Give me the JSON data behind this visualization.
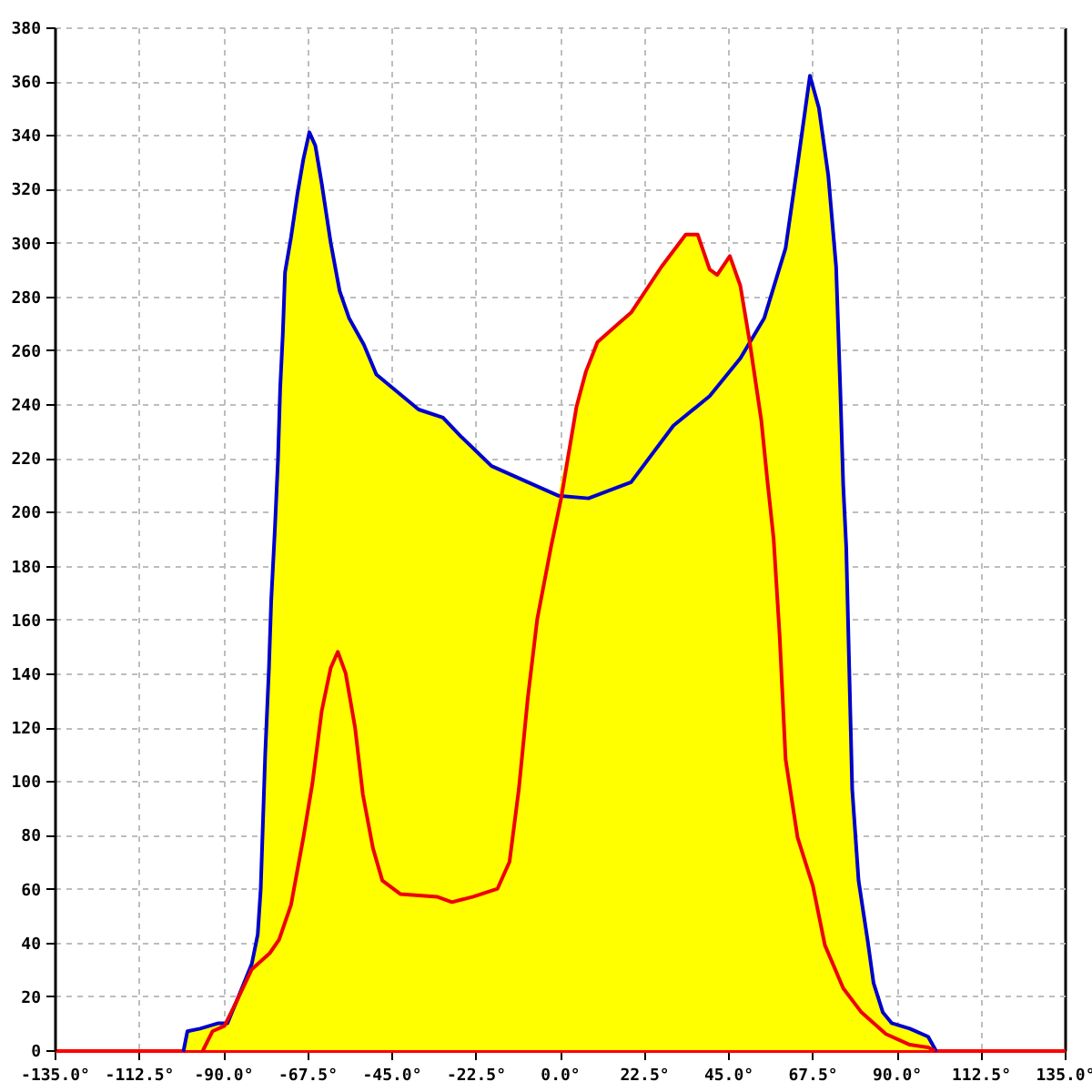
{
  "chart_data": {
    "type": "line",
    "grid": true,
    "xlim": [
      -135,
      135
    ],
    "xticks": [
      {
        "value": -135,
        "label": "-135.0°"
      },
      {
        "value": -112.5,
        "label": "-112.5°"
      },
      {
        "value": -90,
        "label": "-90.0°"
      },
      {
        "value": -67.5,
        "label": "-67.5°"
      },
      {
        "value": -45,
        "label": "-45.0°"
      },
      {
        "value": -22.5,
        "label": "-22.5°"
      },
      {
        "value": 0,
        "label": "0.0°"
      },
      {
        "value": 22.5,
        "label": "22.5°"
      },
      {
        "value": 45,
        "label": "45.0°"
      },
      {
        "value": 67.5,
        "label": "67.5°"
      },
      {
        "value": 90,
        "label": "90.0°"
      },
      {
        "value": 112.5,
        "label": "112.5°"
      },
      {
        "value": 135,
        "label": "135.0°"
      }
    ],
    "ylim": [
      0,
      380
    ],
    "yticks": [
      0,
      20,
      40,
      60,
      80,
      100,
      120,
      140,
      160,
      180,
      200,
      220,
      240,
      260,
      280,
      300,
      320,
      340,
      360,
      380
    ],
    "series": [
      {
        "type": "area",
        "color": "#ffff00",
        "x": [
          -135,
          -100.5,
          -99.5,
          -96.1,
          -91.2,
          -88.8,
          -86.4,
          -82.3,
          -80.7,
          -79.9,
          -78.7,
          -77.7,
          -77.1,
          -76.1,
          -75.3,
          -74.7,
          -74.0,
          -73.4,
          -71.8,
          -70.1,
          -68.5,
          -66.9,
          -65.3,
          -63.6,
          -61.2,
          -58.8,
          -56.3,
          -52.3,
          -49.0,
          -37.7,
          -31.2,
          -26.4,
          -18.2,
          -8.5,
          -0.4,
          4.5,
          7.0,
          10.1,
          15.8,
          19.1,
          27.2,
          33.7,
          36.9,
          40.1,
          42.1,
          45.5,
          48.3,
          50.8,
          54.7,
          60.4,
          63.6,
          66.9,
          69.3,
          71.8,
          73.9,
          75.0,
          75.8,
          76.6,
          77.4,
          78.2,
          79.9,
          82.3,
          83.9,
          86.4,
          88.8,
          93.6,
          98.5,
          100.1,
          100.5,
          135
        ],
        "values": [
          0,
          0,
          7,
          8,
          10,
          10,
          18,
          32,
          43,
          60,
          110,
          142,
          167,
          194,
          219,
          246,
          266,
          289,
          302,
          318,
          331,
          341,
          336,
          322,
          300,
          282,
          272,
          262,
          251,
          238,
          235,
          228,
          217,
          211,
          206,
          239,
          252,
          263,
          270,
          274,
          291,
          303,
          303,
          290,
          288,
          295,
          284,
          263,
          272,
          298,
          329,
          362,
          350,
          325,
          291,
          246,
          210,
          187,
          142,
          97,
          63,
          41,
          25,
          14,
          10,
          8,
          5,
          1,
          0,
          0
        ]
      },
      {
        "color": "#0000cc",
        "x": [
          -100.5,
          -99.5,
          -96.1,
          -91.2,
          -88.8,
          -86.4,
          -82.3,
          -80.7,
          -79.9,
          -78.7,
          -77.7,
          -77.1,
          -76.1,
          -75.3,
          -74.7,
          -74.0,
          -73.4,
          -71.8,
          -70.1,
          -68.5,
          -66.9,
          -65.3,
          -63.6,
          -61.2,
          -58.8,
          -56.3,
          -52.3,
          -49.0,
          -37.7,
          -31.2,
          -26.4,
          -18.2,
          -8.5,
          -0.4,
          7.7,
          19.1,
          30.4,
          40.1,
          48.3,
          54.7,
          60.4,
          63.6,
          66.9,
          69.3,
          71.8,
          73.9,
          75.0,
          75.8,
          76.6,
          77.4,
          78.2,
          79.9,
          82.3,
          83.9,
          86.4,
          88.8,
          93.6,
          98.5,
          100.1,
          100.5
        ],
        "values": [
          0,
          7,
          8,
          10,
          10,
          18,
          32,
          43,
          60,
          110,
          142,
          167,
          194,
          219,
          246,
          266,
          289,
          302,
          318,
          331,
          341,
          336,
          322,
          300,
          282,
          272,
          262,
          251,
          238,
          235,
          228,
          217,
          211,
          206,
          205,
          211,
          232,
          243,
          257,
          272,
          298,
          329,
          362,
          350,
          325,
          291,
          246,
          210,
          187,
          142,
          97,
          63,
          41,
          25,
          14,
          10,
          8,
          5,
          1,
          0
        ]
      },
      {
        "color": "#ee0000",
        "x": [
          -95.3,
          -92.8,
          -89.6,
          -86.4,
          -82.3,
          -77.5,
          -75.0,
          -71.8,
          -68.5,
          -66.1,
          -63.6,
          -61.2,
          -59.3,
          -57.2,
          -54.7,
          -52.6,
          -49.9,
          -47.4,
          -42.6,
          -32.8,
          -28.8,
          -23.1,
          -16.6,
          -13.4,
          -10.9,
          -8.5,
          -6.0,
          -2.3,
          0.4,
          4.5,
          7.0,
          10.1,
          15.8,
          19.1,
          27.2,
          33.7,
          36.9,
          40.1,
          42.1,
          45.5,
          48.3,
          50.7,
          53.9,
          55.5,
          57.2,
          58.8,
          60.4,
          63.6,
          67.7,
          70.9,
          75.8,
          80.7,
          87.2,
          93.6,
          98.5,
          100.0
        ],
        "values": [
          0,
          7,
          9,
          18,
          30,
          36,
          41,
          54,
          79,
          99,
          126,
          142,
          148,
          140,
          120,
          95,
          75,
          63,
          58,
          57,
          55,
          57,
          60,
          70,
          97,
          131,
          160,
          187,
          205,
          239,
          252,
          263,
          270,
          274,
          291,
          303,
          303,
          290,
          288,
          295,
          284,
          264,
          234,
          212,
          190,
          154,
          108,
          79,
          61,
          39,
          23,
          14,
          6,
          2,
          1,
          0
        ]
      }
    ]
  }
}
